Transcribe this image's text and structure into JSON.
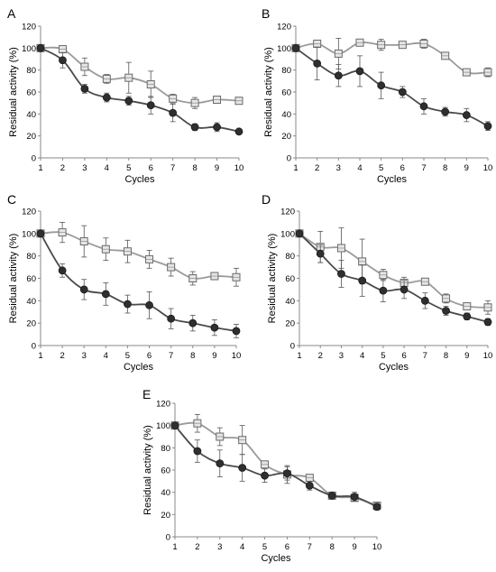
{
  "chart_data": [
    {
      "type": "line",
      "panel_label": "A",
      "xlabel": "Cycles",
      "ylabel": "Residual activity (%)",
      "x": [
        1,
        2,
        3,
        4,
        5,
        6,
        7,
        8,
        9,
        10
      ],
      "xlim": [
        1,
        10
      ],
      "ylim": [
        0,
        120
      ],
      "y_ticks": [
        0,
        20,
        40,
        60,
        80,
        100,
        120
      ],
      "grid": false,
      "legend": "none",
      "series": [
        {
          "marker": "square-open",
          "color": "#9a9a9a",
          "values": [
            100,
            99,
            83,
            72,
            73,
            67,
            54,
            50,
            53,
            52
          ],
          "errors": [
            1,
            2,
            8,
            4,
            14,
            12,
            4,
            5,
            2,
            2
          ]
        },
        {
          "marker": "circle-filled",
          "color": "#4a4a4a",
          "values": [
            100,
            89,
            63,
            55,
            52,
            48,
            41,
            28,
            28,
            24
          ],
          "errors": [
            1,
            7,
            4,
            4,
            4,
            8,
            8,
            3,
            4,
            1
          ]
        }
      ]
    },
    {
      "type": "line",
      "panel_label": "B",
      "xlabel": "Cycles",
      "ylabel": "Residual activity (%)",
      "x": [
        1,
        2,
        3,
        4,
        5,
        6,
        7,
        8,
        9,
        10
      ],
      "xlim": [
        1,
        10
      ],
      "ylim": [
        0,
        120
      ],
      "y_ticks": [
        0,
        20,
        40,
        60,
        80,
        100,
        120
      ],
      "grid": false,
      "legend": "none",
      "series": [
        {
          "marker": "square-open",
          "color": "#9a9a9a",
          "values": [
            100,
            104,
            95,
            105,
            103,
            103,
            104,
            93,
            78,
            78
          ],
          "errors": [
            1,
            3,
            14,
            2,
            5,
            2,
            4,
            1,
            2,
            4
          ]
        },
        {
          "marker": "circle-filled",
          "color": "#4a4a4a",
          "values": [
            100,
            86,
            75,
            79,
            66,
            60,
            47,
            42,
            39,
            29
          ],
          "errors": [
            1,
            15,
            10,
            14,
            12,
            5,
            7,
            4,
            6,
            4
          ]
        }
      ]
    },
    {
      "type": "line",
      "panel_label": "C",
      "xlabel": "Cycles",
      "ylabel": "Residual activity (%)",
      "x": [
        1,
        2,
        3,
        4,
        5,
        6,
        7,
        8,
        9,
        10
      ],
      "xlim": [
        1,
        10
      ],
      "ylim": [
        0,
        120
      ],
      "y_ticks": [
        0,
        20,
        40,
        60,
        80,
        100,
        120
      ],
      "grid": false,
      "legend": "none",
      "series": [
        {
          "marker": "square-open",
          "color": "#9a9a9a",
          "values": [
            100,
            101,
            93,
            86,
            84,
            77,
            70,
            60,
            62,
            61
          ],
          "errors": [
            1,
            9,
            14,
            10,
            10,
            8,
            8,
            6,
            2,
            8
          ]
        },
        {
          "marker": "circle-filled",
          "color": "#4a4a4a",
          "values": [
            100,
            67,
            50,
            46,
            37,
            36,
            24,
            20,
            16,
            13
          ],
          "errors": [
            1,
            6,
            9,
            10,
            8,
            12,
            9,
            7,
            7,
            6
          ]
        }
      ]
    },
    {
      "type": "line",
      "panel_label": "D",
      "xlabel": "Cycles",
      "ylabel": "Residual activity (%)",
      "x": [
        1,
        2,
        3,
        4,
        5,
        6,
        7,
        8,
        9,
        10
      ],
      "xlim": [
        1,
        10
      ],
      "ylim": [
        0,
        120
      ],
      "y_ticks": [
        0,
        20,
        40,
        60,
        80,
        100,
        120
      ],
      "grid": false,
      "legend": "none",
      "series": [
        {
          "marker": "square-open",
          "color": "#9a9a9a",
          "values": [
            100,
            88,
            87,
            75,
            63,
            56,
            57,
            42,
            35,
            34
          ],
          "errors": [
            1,
            14,
            18,
            20,
            5,
            5,
            2,
            4,
            2,
            6
          ]
        },
        {
          "marker": "circle-filled",
          "color": "#4a4a4a",
          "values": [
            100,
            82,
            64,
            58,
            49,
            50,
            40,
            31,
            26,
            21
          ],
          "errors": [
            1,
            8,
            12,
            14,
            10,
            8,
            7,
            4,
            3,
            3
          ]
        }
      ]
    },
    {
      "type": "line",
      "panel_label": "E",
      "xlabel": "Cycles",
      "ylabel": "Residual activity (%)",
      "x": [
        1,
        2,
        3,
        4,
        5,
        6,
        7,
        8,
        9,
        10
      ],
      "xlim": [
        1,
        10
      ],
      "ylim": [
        0,
        120
      ],
      "y_ticks": [
        0,
        20,
        40,
        60,
        80,
        100,
        120
      ],
      "grid": false,
      "legend": "none",
      "series": [
        {
          "marker": "square-open",
          "color": "#9a9a9a",
          "values": [
            100,
            102,
            90,
            87,
            65,
            56,
            53,
            37,
            35,
            28
          ],
          "errors": [
            1,
            8,
            8,
            13,
            2,
            8,
            2,
            3,
            3,
            3
          ]
        },
        {
          "marker": "circle-filled",
          "color": "#4a4a4a",
          "values": [
            100,
            77,
            66,
            62,
            55,
            57,
            46,
            37,
            36,
            27
          ],
          "errors": [
            1,
            10,
            12,
            12,
            6,
            6,
            4,
            2,
            4,
            3
          ]
        }
      ]
    }
  ]
}
